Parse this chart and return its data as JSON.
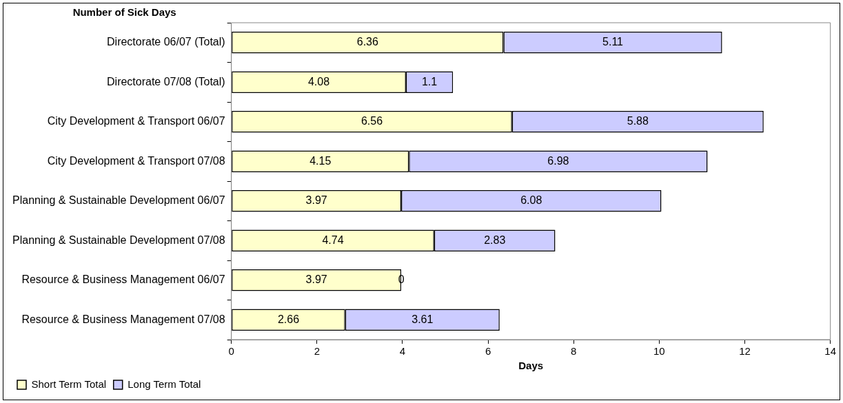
{
  "chart_data": {
    "type": "bar",
    "orientation": "horizontal",
    "stacked": true,
    "title": "Number of Sick Days",
    "xlabel": "Days",
    "categories": [
      "Directorate 06/07 (Total)",
      "Directorate 07/08 (Total)",
      "City Development & Transport 06/07",
      "City Development & Transport 07/08",
      "Planning & Sustainable Development 06/07",
      "Planning & Sustainable Development 07/08",
      "Resource & Business Management 06/07",
      "Resource & Business Management 07/08"
    ],
    "series": [
      {
        "name": "Short Term Total",
        "color": "#ffffcc",
        "values": [
          6.36,
          4.08,
          6.56,
          4.15,
          3.97,
          4.74,
          3.97,
          2.66
        ]
      },
      {
        "name": "Long Term Total",
        "color": "#ccccff",
        "values": [
          5.11,
          1.1,
          5.88,
          6.98,
          6.08,
          2.83,
          0,
          3.61
        ]
      }
    ],
    "xlim": [
      0,
      14
    ],
    "xticks": [
      0,
      2,
      4,
      6,
      8,
      10,
      12,
      14
    ],
    "data_labels": true,
    "grid": false,
    "legend": "bottom left"
  }
}
